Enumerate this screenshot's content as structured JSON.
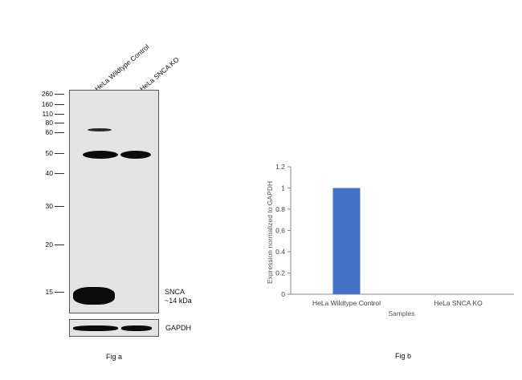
{
  "western_blot": {
    "lanes": [
      "HeLa Wildtype Control",
      "HeLa SNCA KO"
    ],
    "mw_markers": [
      "260",
      "160",
      "110",
      "80",
      "60",
      "50",
      "40",
      "30",
      "20",
      "15"
    ],
    "target_label": "SNCA",
    "target_size": "~14 kDa",
    "loading_control": "GAPDH",
    "caption": "Fig a"
  },
  "chart_data": {
    "type": "bar",
    "title": "",
    "categories": [
      "HeLa Wildtype Control",
      "HeLa SNCA KO"
    ],
    "values": [
      1,
      0
    ],
    "xlabel": "Samples",
    "ylabel": "Expression normalized to GAPDH",
    "ylim": [
      0,
      1.2
    ],
    "yticks": [
      "0",
      "0.2",
      "0.4",
      "0.6",
      "0.8",
      "1",
      "1.2"
    ],
    "bar_color": "#4472c4",
    "grid": false,
    "legend": "none",
    "caption": "Fig b"
  }
}
